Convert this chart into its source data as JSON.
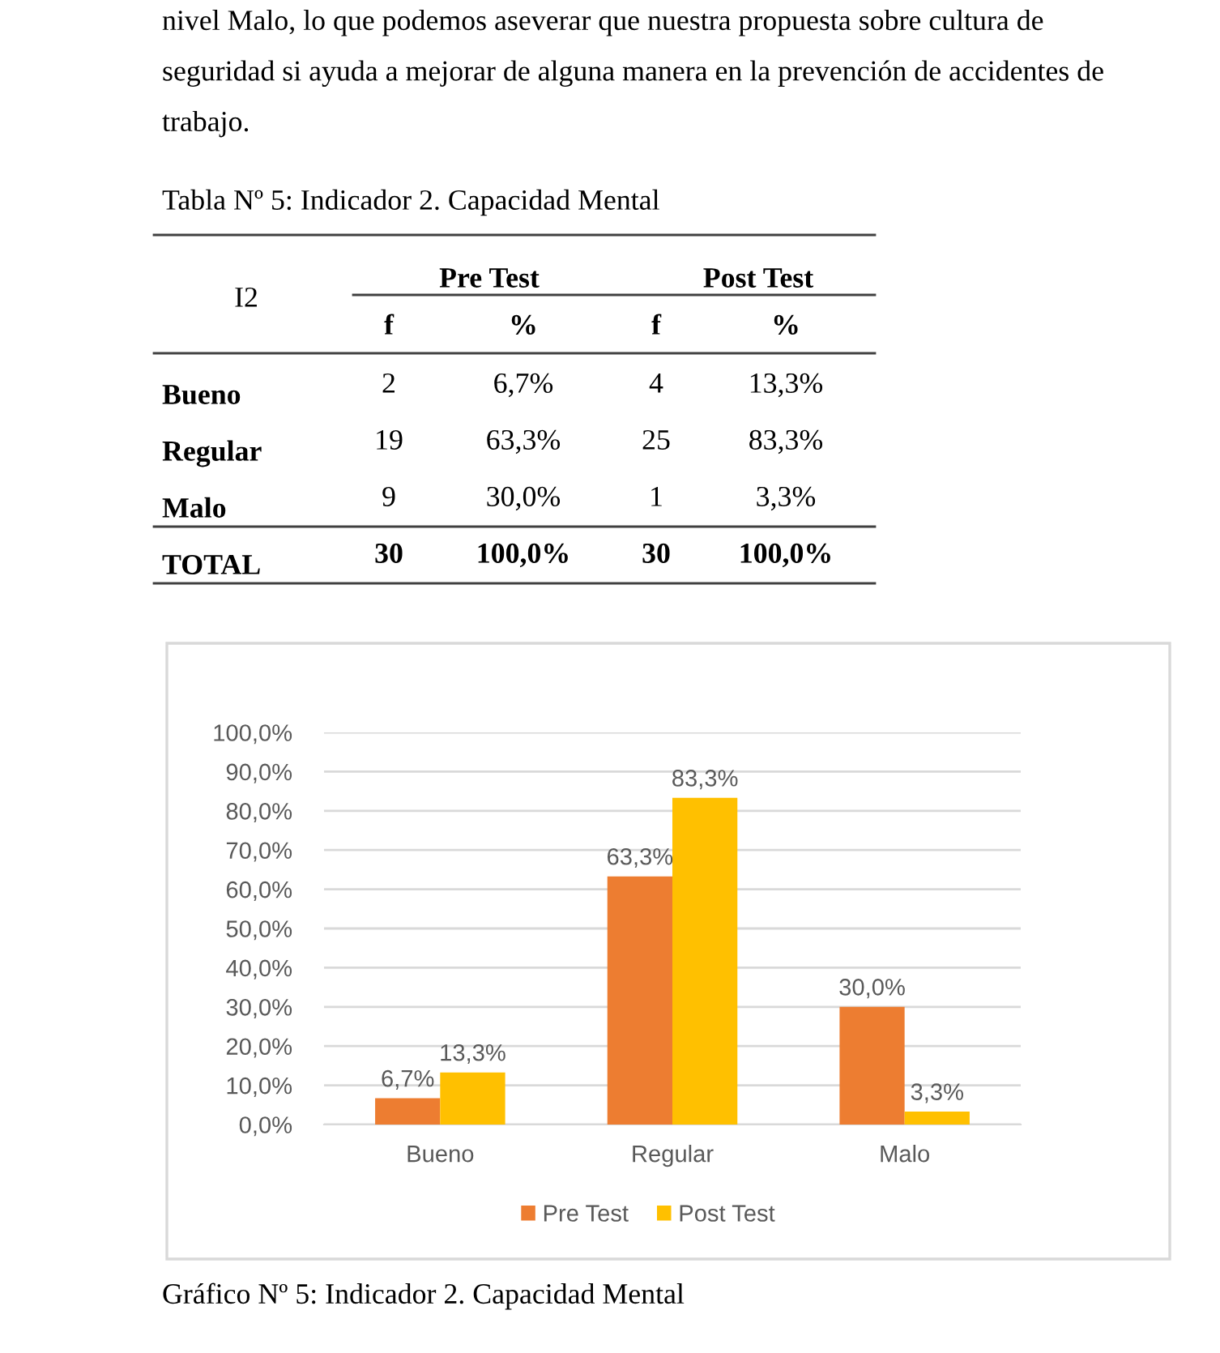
{
  "chart_data": {
    "type": "bar",
    "title": "Gráfico Nº 5: Indicador 2. Capacidad Mental",
    "annotations": [
      "nivel Malo, lo que podemos aseverar que nuestra propuesta sobre cultura de seguridad si ayuda a mejorar de alguna manera en la prevención de accidentes de trabajo.",
      "Tabla Nº 5: Indicador 2. Capacidad Mental",
      "I2",
      "Pre Test",
      "Post Test",
      "f",
      "%",
      "f",
      "%",
      "Bueno",
      "2",
      "6,7%",
      "4",
      "13,3%",
      "Regular",
      "19",
      "63,3%",
      "25",
      "83,3%",
      "Malo",
      "9",
      "30,0%",
      "1",
      "3,3%",
      "TOTAL",
      "30",
      "100,0%",
      "30",
      "100,0%"
    ],
    "categories": [
      "Bueno",
      "Regular",
      "Malo"
    ],
    "series": [
      {
        "name": "Pre Test",
        "color": "#ed7d31",
        "values": [
          6.7,
          63.3,
          30.0
        ],
        "value_labels": [
          "6,7%",
          "63,3%",
          "30,0%"
        ]
      },
      {
        "name": "Post Test",
        "color": "#ffc000",
        "values": [
          13.3,
          83.3,
          3.3
        ],
        "value_labels": [
          "13,3%",
          "83,3%",
          "3,3%"
        ]
      }
    ],
    "ylim": [
      0,
      100
    ],
    "yticks": [
      {
        "value": 0,
        "label": "0,0%"
      },
      {
        "value": 10,
        "label": "10,0%"
      },
      {
        "value": 20,
        "label": "20,0%"
      },
      {
        "value": 30,
        "label": "30,0%"
      },
      {
        "value": 40,
        "label": "40,0%"
      },
      {
        "value": 50,
        "label": "50,0%"
      },
      {
        "value": 60,
        "label": "60,0%"
      },
      {
        "value": 70,
        "label": "70,0%"
      },
      {
        "value": 80,
        "label": "80,0%"
      },
      {
        "value": 90,
        "label": "90,0%"
      },
      {
        "value": 100,
        "label": "100,0%"
      }
    ],
    "grid": "y",
    "legend": "bottom"
  }
}
